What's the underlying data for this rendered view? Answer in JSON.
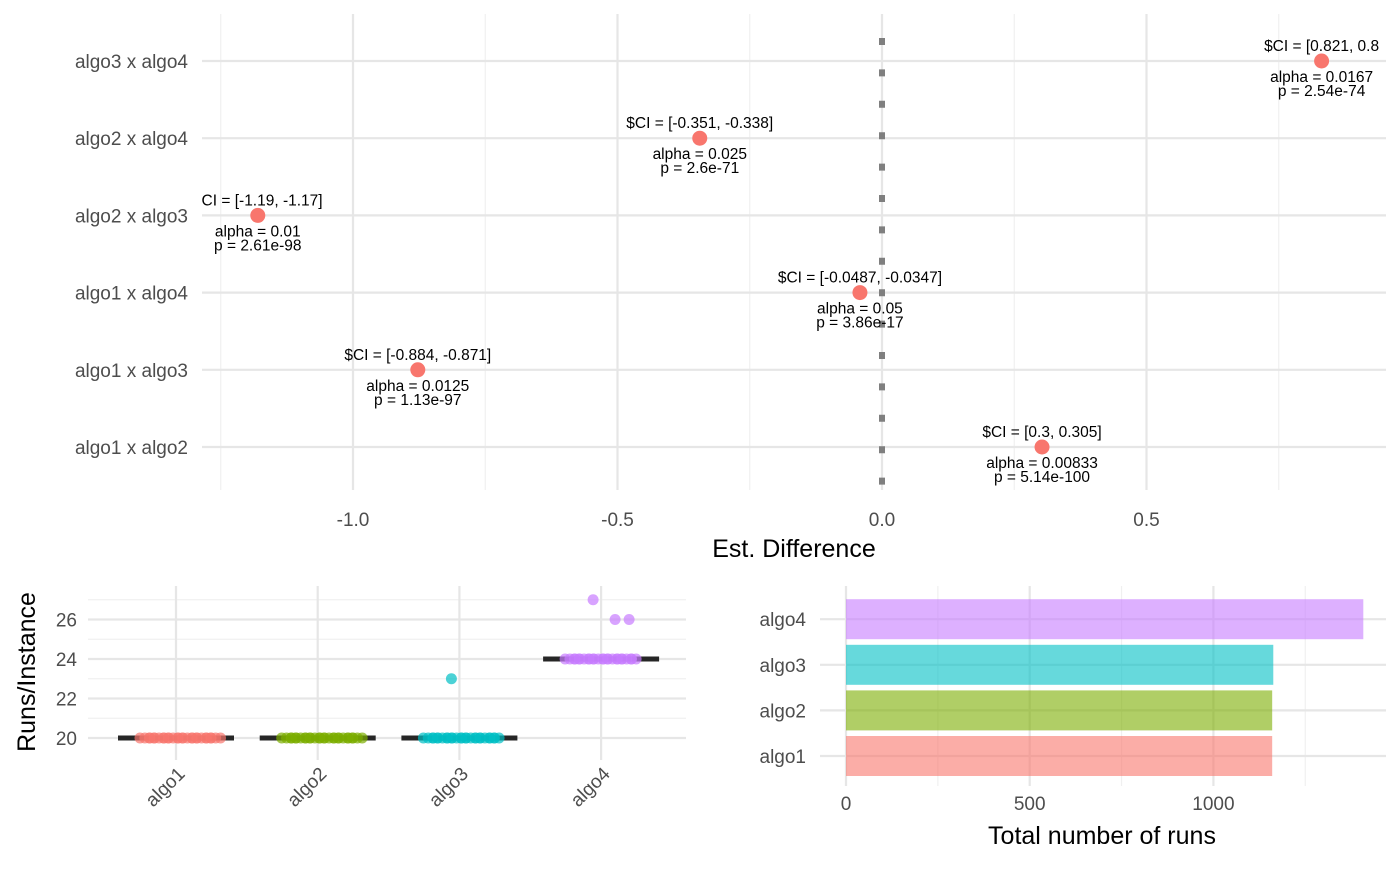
{
  "chart_data": [
    {
      "type": "scatter",
      "xlabel": "Est. Difference",
      "ylabel": "",
      "xlim": [
        -1.25,
        0.95
      ],
      "x_ticks": [
        -1.0,
        -0.5,
        0.0,
        0.5
      ],
      "x_tick_labels": [
        "-1.0",
        "-0.5",
        "0.0",
        "0.5"
      ],
      "reference_line": {
        "x": 0,
        "style": "dotted",
        "color": "#7f7f7f"
      },
      "categories": [
        "algo1 x algo2",
        "algo1 x algo3",
        "algo1 x algo4",
        "algo2 x algo3",
        "algo2 x algo4",
        "algo3 x algo4"
      ],
      "point_color": "#F8766D",
      "points": [
        {
          "label": "algo1 x algo2",
          "x": 0.3025,
          "ci_text": "$CI = [0.3, 0.305]",
          "alpha_text": "alpha = 0.00833",
          "p_text": "p = 5.14e-100"
        },
        {
          "label": "algo1 x algo3",
          "x": -0.8775,
          "ci_text": "$CI = [-0.884, -0.871]",
          "alpha_text": "alpha = 0.0125",
          "p_text": "p = 1.13e-97"
        },
        {
          "label": "algo1 x algo4",
          "x": -0.0417,
          "ci_text": "$CI = [-0.0487, -0.0347]",
          "alpha_text": "alpha = 0.05",
          "p_text": "p = 3.86e-17"
        },
        {
          "label": "algo2 x algo3",
          "x": -1.18,
          "ci_text": "$CI = [-1.19, -1.17]",
          "alpha_text": "alpha = 0.01",
          "p_text": "p = 2.61e-98"
        },
        {
          "label": "algo2 x algo4",
          "x": -0.3445,
          "ci_text": "$CI = [-0.351, -0.338]",
          "alpha_text": "alpha = 0.025",
          "p_text": "p = 2.6e-71"
        },
        {
          "label": "algo3 x algo4",
          "x": 0.831,
          "ci_text": "$CI = [0.821, 0.8",
          "alpha_text": "alpha = 0.0167",
          "p_text": "p = 2.54e-74"
        }
      ],
      "grid": true
    },
    {
      "type": "scatter",
      "xlabel": "",
      "ylabel": "Runs/Instance",
      "categories": [
        "algo1",
        "algo2",
        "algo3",
        "algo4"
      ],
      "ylim": [
        19.2,
        27.6
      ],
      "y_ticks": [
        20,
        22,
        24,
        26
      ],
      "y_tick_labels": [
        "20",
        "22",
        "24",
        "26"
      ],
      "colors": [
        "#F8766D",
        "#7CAE00",
        "#00BFC4",
        "#C77CFF"
      ],
      "medians": [
        20,
        20,
        20,
        24
      ],
      "series": [
        {
          "category": "algo1",
          "values": [
            20,
            20,
            20,
            20,
            20,
            20,
            20,
            20,
            20,
            20,
            20,
            20,
            20,
            20,
            20,
            20,
            20,
            20,
            20,
            20,
            20,
            20,
            20,
            20,
            20,
            20,
            20,
            20
          ]
        },
        {
          "category": "algo2",
          "values": [
            20,
            20,
            20,
            20,
            20,
            20,
            20,
            20,
            20,
            20,
            20,
            20,
            20,
            20,
            20,
            20,
            20,
            20,
            20,
            20,
            20,
            20,
            20,
            20,
            20,
            20,
            20,
            20
          ]
        },
        {
          "category": "algo3",
          "values": [
            20,
            20,
            20,
            20,
            20,
            20,
            20,
            20,
            20,
            20,
            20,
            20,
            20,
            20,
            20,
            20,
            20,
            20,
            20,
            20,
            20,
            20,
            20,
            20,
            20,
            20,
            20,
            23
          ]
        },
        {
          "category": "algo4",
          "values": [
            24,
            24,
            24,
            24,
            24,
            24,
            24,
            24,
            24,
            24,
            24,
            24,
            24,
            24,
            24,
            24,
            24,
            24,
            24,
            24,
            24,
            24,
            24,
            24,
            24,
            27,
            26,
            26
          ]
        }
      ],
      "grid": true
    },
    {
      "type": "bar",
      "orientation": "horizontal",
      "xlabel": "Total number of runs",
      "ylabel": "",
      "categories": [
        "algo1",
        "algo2",
        "algo3",
        "algo4"
      ],
      "values": [
        1160,
        1160,
        1163,
        1408
      ],
      "colors": [
        "#F8766D",
        "#7CAE00",
        "#00BFC4",
        "#C77CFF"
      ],
      "xlim": [
        -70,
        1480
      ],
      "x_ticks": [
        0,
        500,
        1000
      ],
      "x_tick_labels": [
        "0",
        "500",
        "1000"
      ],
      "grid": true
    }
  ]
}
